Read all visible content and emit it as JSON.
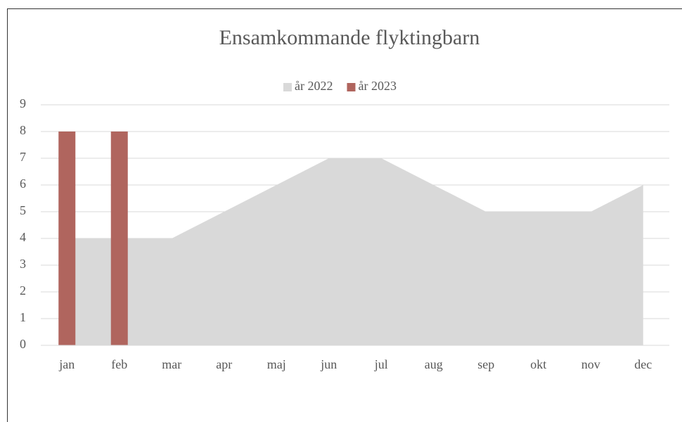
{
  "chart_data": {
    "type": "combo",
    "title": "Ensamkommande flyktingbarn",
    "categories": [
      "jan",
      "feb",
      "mar",
      "apr",
      "maj",
      "jun",
      "jul",
      "aug",
      "sep",
      "okt",
      "nov",
      "dec"
    ],
    "series": [
      {
        "name": "år 2022",
        "type": "area",
        "color": "#d9d9d9",
        "values": [
          4,
          4,
          4,
          5,
          6,
          7,
          7,
          6,
          5,
          5,
          5,
          6
        ]
      },
      {
        "name": "år 2023",
        "type": "bar",
        "color": "#b0655e",
        "values": [
          8,
          8,
          null,
          null,
          null,
          null,
          null,
          null,
          null,
          null,
          null,
          null
        ]
      }
    ],
    "ylim": [
      0,
      9
    ],
    "yticks": [
      0,
      1,
      2,
      3,
      4,
      5,
      6,
      7,
      8,
      9
    ],
    "grid": true,
    "legend": "top"
  }
}
